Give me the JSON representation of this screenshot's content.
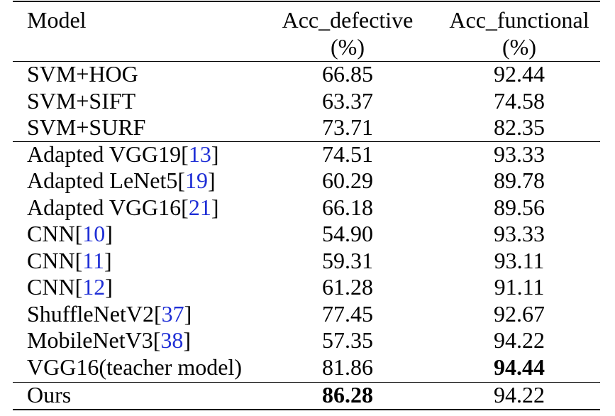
{
  "header": {
    "model": "Model",
    "acc_defective_line1": "Acc_defective",
    "acc_defective_line2": "(%)",
    "acc_functional_line1": "Acc_functional",
    "acc_functional_line2": "(%)"
  },
  "rows": [
    {
      "name": "SVM+HOG",
      "ref": "",
      "suffix": "",
      "def": "66.85",
      "fun": "92.44"
    },
    {
      "name": "SVM+SIFT",
      "ref": "",
      "suffix": "",
      "def": "63.37",
      "fun": "74.58"
    },
    {
      "name": "SVM+SURF",
      "ref": "",
      "suffix": "",
      "def": "73.71",
      "fun": "82.35"
    },
    {
      "name": "Adapted VGG19[",
      "ref": "13",
      "suffix": "]",
      "def": "74.51",
      "fun": "93.33"
    },
    {
      "name": "Adapted LeNet5[",
      "ref": "19",
      "suffix": "]",
      "def": "60.29",
      "fun": "89.78"
    },
    {
      "name": "Adapted VGG16[",
      "ref": "21",
      "suffix": "]",
      "def": "66.18",
      "fun": "89.56"
    },
    {
      "name": "CNN[",
      "ref": "10",
      "suffix": "]",
      "def": "54.90",
      "fun": "93.33"
    },
    {
      "name": "CNN[",
      "ref": "11",
      "suffix": "]",
      "def": "59.31",
      "fun": "93.11"
    },
    {
      "name": "CNN[",
      "ref": "12",
      "suffix": "]",
      "def": "61.28",
      "fun": "91.11"
    },
    {
      "name": "ShuffleNetV2[",
      "ref": "37",
      "suffix": "]",
      "def": "77.45",
      "fun": "92.67"
    },
    {
      "name": "MobileNetV3[",
      "ref": "38",
      "suffix": "]",
      "def": "57.35",
      "fun": "94.22"
    },
    {
      "name": "VGG16(teacher model)",
      "ref": "",
      "suffix": "",
      "def": "81.86",
      "fun": "94.44"
    },
    {
      "name": "Ours",
      "ref": "",
      "suffix": "",
      "def": "86.28",
      "fun": "94.22"
    }
  ],
  "colors": {
    "reference_link": "#1f2fd6",
    "text": "#000000"
  }
}
